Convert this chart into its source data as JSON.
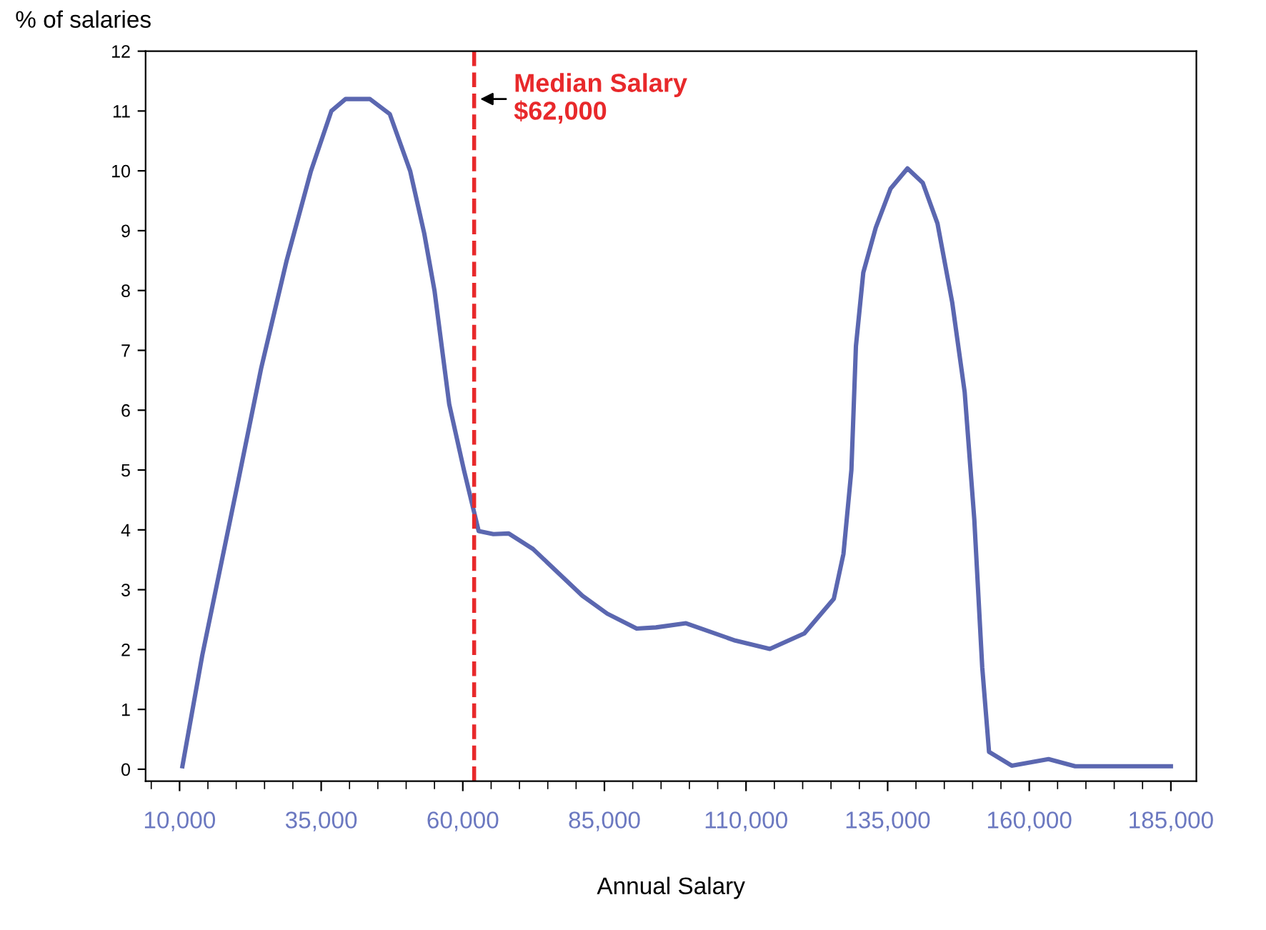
{
  "chart_data": {
    "type": "line",
    "xlabel": "Annual Salary",
    "ylabel": "% of salaries",
    "x": [
      10500,
      14000,
      20100,
      24400,
      28900,
      33200,
      36800,
      39300,
      43600,
      47100,
      50700,
      53200,
      55000,
      57600,
      60200,
      62800,
      65400,
      68100,
      72400,
      81100,
      85500,
      90700,
      94100,
      99400,
      108100,
      114200,
      120300,
      125500,
      127200,
      128600,
      129400,
      130700,
      132900,
      135500,
      138500,
      141200,
      143800,
      146400,
      148600,
      150300,
      151700,
      152900,
      156900,
      163400,
      168100,
      185000
    ],
    "series": [
      {
        "color": "#5b67b0",
        "values": [
          0.05,
          1.9,
          4.7,
          6.7,
          8.5,
          10.0,
          11.0,
          11.2,
          11.2,
          10.95,
          10.0,
          8.95,
          8.0,
          6.1,
          5.0,
          3.98,
          3.93,
          3.94,
          3.68,
          2.9,
          2.6,
          2.35,
          2.37,
          2.44,
          2.15,
          2.01,
          2.27,
          2.85,
          3.6,
          5.0,
          7.07,
          8.3,
          9.05,
          9.7,
          10.04,
          9.8,
          9.12,
          7.8,
          6.3,
          4.17,
          1.7,
          0.29,
          0.06,
          0.17,
          0.05,
          0.05
        ]
      }
    ],
    "xlim": [
      4000,
      189500
    ],
    "ylim": [
      -0.2,
      12
    ],
    "xticks": [
      {
        "value": 10000,
        "label": "10,000"
      },
      {
        "value": 35000,
        "label": "35,000"
      },
      {
        "value": 60000,
        "label": "60,000"
      },
      {
        "value": 85000,
        "label": "85,000"
      },
      {
        "value": 110000,
        "label": "110,000"
      },
      {
        "value": 135000,
        "label": "135,000"
      },
      {
        "value": 160000,
        "label": "160,000"
      },
      {
        "value": 185000,
        "label": "185,000"
      }
    ],
    "yticks": [
      0,
      1,
      2,
      3,
      4,
      5,
      6,
      7,
      8,
      9,
      10,
      11,
      12
    ],
    "ref_lines": [
      {
        "axis": "x",
        "value": 62000,
        "label": "Median Salary\n$62,000",
        "color": "#e8292b",
        "line_style": "dashed"
      }
    ],
    "grid": false,
    "legend": false,
    "marker": "none",
    "line_style": "solid"
  }
}
